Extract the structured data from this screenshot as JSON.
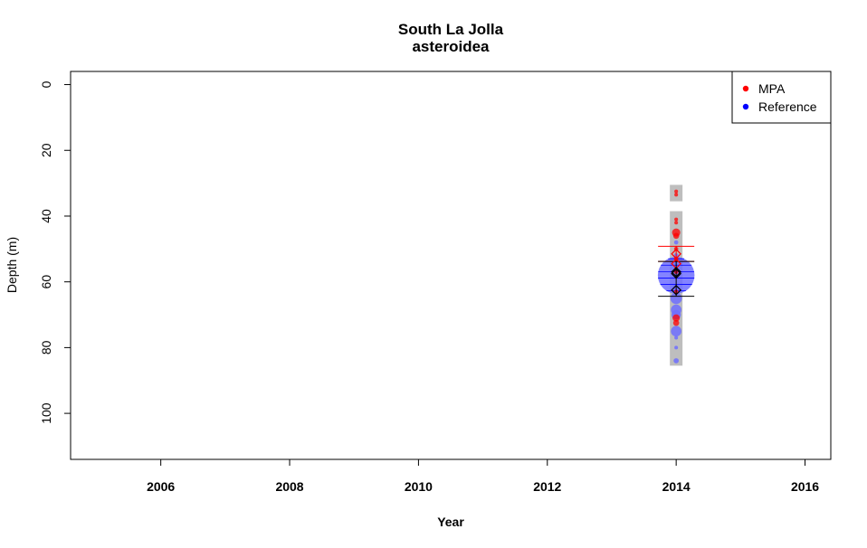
{
  "chart_data": {
    "type": "scatter",
    "title": "South La Jolla",
    "subtitle": "asteroidea",
    "xlabel": "Year",
    "ylabel": "Depth (m)",
    "xlim": [
      2004.6,
      2016.4
    ],
    "ylim": [
      -4,
      114
    ],
    "y_reversed": true,
    "x_ticks": [
      "2006",
      "2008",
      "2010",
      "2012",
      "2014",
      "2016"
    ],
    "y_ticks": [
      "0",
      "20",
      "40",
      "60",
      "80",
      "100"
    ],
    "legend": {
      "position": "top-right",
      "items": [
        {
          "label": "MPA",
          "color": "#ff0000"
        },
        {
          "label": "Reference",
          "color": "#0000ff"
        }
      ]
    },
    "colors": {
      "mpa": "#ff0000",
      "reference": "#0000ff",
      "reference_fill": "#6f6fff",
      "band": "#bebebe"
    },
    "sample_bands": [
      {
        "x": 2014,
        "depth_min": 30.5,
        "depth_max": 35.5
      },
      {
        "x": 2014,
        "depth_min": 38.5,
        "depth_max": 85.5
      }
    ],
    "series": [
      {
        "name": "MPA",
        "points": [
          {
            "x": 2014,
            "depth": 32.5,
            "abundance": 0.3
          },
          {
            "x": 2014,
            "depth": 33.5,
            "abundance": 0.3
          },
          {
            "x": 2014,
            "depth": 41,
            "abundance": 0.3
          },
          {
            "x": 2014,
            "depth": 42,
            "abundance": 0.3
          },
          {
            "x": 2014,
            "depth": 45,
            "abundance": 1.5
          },
          {
            "x": 2014,
            "depth": 46,
            "abundance": 0.8
          },
          {
            "x": 2014,
            "depth": 50,
            "abundance": 0.4
          },
          {
            "x": 2014,
            "depth": 53,
            "abundance": 0.5
          },
          {
            "x": 2014,
            "depth": 57,
            "abundance": 0.4
          },
          {
            "x": 2014,
            "depth": 63,
            "abundance": 0.4
          },
          {
            "x": 2014,
            "depth": 71,
            "abundance": 1.2
          },
          {
            "x": 2014,
            "depth": 72.5,
            "abundance": 0.8
          }
        ],
        "mean_depth": 51.5,
        "error_low": 49.2,
        "error_high": 53.8
      },
      {
        "name": "Reference",
        "points": [
          {
            "x": 2014,
            "depth": 58,
            "abundance": 30
          },
          {
            "x": 2014,
            "depth": 48,
            "abundance": 0.4
          },
          {
            "x": 2014,
            "depth": 52,
            "abundance": 0.5
          },
          {
            "x": 2014,
            "depth": 62,
            "abundance": 1.5
          },
          {
            "x": 2014,
            "depth": 65,
            "abundance": 3
          },
          {
            "x": 2014,
            "depth": 68.5,
            "abundance": 2.5
          },
          {
            "x": 2014,
            "depth": 70,
            "abundance": 2
          },
          {
            "x": 2014,
            "depth": 75,
            "abundance": 2.5
          },
          {
            "x": 2014,
            "depth": 77,
            "abundance": 0.3
          },
          {
            "x": 2014,
            "depth": 80,
            "abundance": 0.3
          },
          {
            "x": 2014,
            "depth": 84,
            "abundance": 0.6
          }
        ],
        "mean_depth": 58,
        "error_low": 53.8,
        "error_high": 64.4
      }
    ]
  }
}
